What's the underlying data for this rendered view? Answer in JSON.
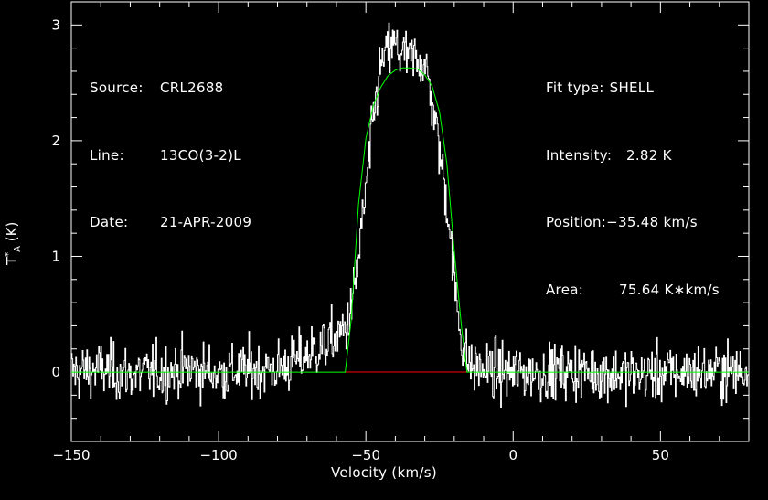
{
  "info_left": {
    "source_label": "Source:",
    "source_value": "CRL2688",
    "line_label": "Line:",
    "line_value": "13CO(3-2)L",
    "date_label": "Date:",
    "date_value": "21-APR-2009"
  },
  "info_right": {
    "fit_label": "Fit type:",
    "fit_value": "SHELL",
    "intensity_label": "Intensity:",
    "intensity_value": "2.82 K",
    "position_label": "Position:",
    "position_value": "−35.48 km/s",
    "area_label": "Area:",
    "area_value": "75.64 K∗km/s"
  },
  "chart_data": {
    "type": "line",
    "xlabel": "Velocity (km/s)",
    "ylabel": "T*A (K)",
    "ylabel_parts": {
      "base": "T",
      "sup": "*",
      "sub": "A",
      "unit": "(K)"
    },
    "xlim": [
      -150,
      80
    ],
    "ylim": [
      -0.6,
      3.2
    ],
    "xticks": [
      -150,
      -100,
      -50,
      0,
      50
    ],
    "xtick_labels": [
      "−150",
      "−100",
      "−50",
      "0",
      "50"
    ],
    "yticks": [
      0,
      1,
      2,
      3
    ],
    "ytick_labels": [
      "0",
      "1",
      "2",
      "3"
    ],
    "grid": false,
    "colors": {
      "background": "#000000",
      "spectrum": "#ffffff",
      "fit": "#00ff00",
      "fit_window": "#ff0000",
      "axes": "#ffffff"
    },
    "series": [
      {
        "name": "",
        "style": "histogram",
        "x": [
          -150,
          -140,
          -130,
          -120,
          -110,
          -100,
          -90,
          -80,
          -75,
          -70,
          -65,
          -60,
          -57,
          -55,
          -53,
          -50,
          -47,
          -45,
          -42,
          -40,
          -38,
          -35,
          -32,
          -30,
          -28,
          -25,
          -22,
          -20,
          -18,
          -16,
          -14,
          -10,
          0,
          20,
          40,
          60,
          80
        ],
        "y": [
          0.0,
          0.02,
          -0.02,
          0.0,
          0.03,
          -0.01,
          0.02,
          0.03,
          0.08,
          0.15,
          0.22,
          0.3,
          0.38,
          0.55,
          0.9,
          1.6,
          2.3,
          2.65,
          2.8,
          2.82,
          2.75,
          2.7,
          2.72,
          2.65,
          2.4,
          1.9,
          1.35,
          0.75,
          0.35,
          0.12,
          0.05,
          0.02,
          -0.01,
          0.01,
          -0.02,
          0.0,
          0.01
        ],
        "noise_rms": 0.12
      },
      {
        "name": "",
        "style": "fit",
        "x": [
          -150,
          -57,
          -55,
          -52.5,
          -50,
          -47.5,
          -45,
          -42.5,
          -40,
          -37.5,
          -35.48,
          -32.5,
          -30,
          -27.5,
          -25,
          -22.5,
          -20,
          -17.5,
          -15.7,
          -14,
          80
        ],
        "y": [
          0,
          0,
          0.45,
          1.45,
          2.02,
          2.3,
          2.46,
          2.56,
          2.61,
          2.63,
          2.63,
          2.62,
          2.57,
          2.47,
          2.25,
          1.8,
          1.05,
          0.38,
          0.0,
          0,
          0
        ]
      }
    ],
    "fit_window": [
      -57,
      -14
    ]
  }
}
